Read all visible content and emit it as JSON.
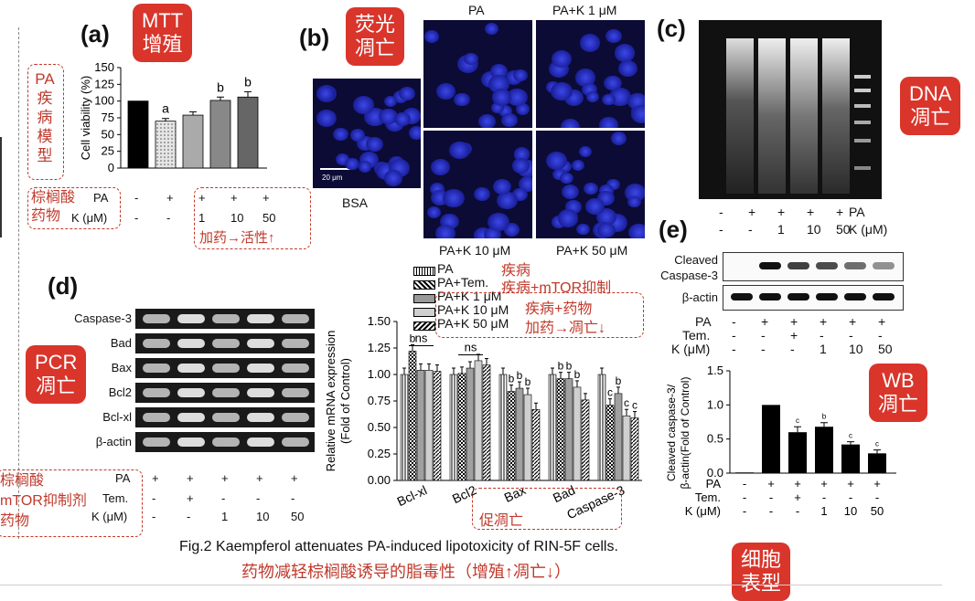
{
  "panel_a": {
    "letter": "(a)",
    "callout": "MTT\n增殖",
    "ylabel": "Cell viability (%)",
    "side_label": "PA\n疾\n病\n模\n型",
    "row_pa": "PA",
    "row_k": "K (μM)",
    "pa_vals": [
      "-",
      "+",
      "+",
      "+",
      "+"
    ],
    "k_vals": [
      "-",
      "-",
      "1",
      "10",
      "50"
    ],
    "left_label": "棕榈酸\n药物",
    "note": "加药→活性↑",
    "sig": [
      "",
      "a",
      "",
      "b",
      "b"
    ]
  },
  "panel_b": {
    "letter": "(b)",
    "callout": "荧光\n凋亡",
    "scale_bar": "20 μm",
    "labels": {
      "bsa": "BSA",
      "pa": "PA",
      "pak1": "PA+K 1 μM",
      "pak10": "PA+K 10 μM",
      "pak50": "PA+K 50 μM"
    }
  },
  "panel_c": {
    "letter": "(c)",
    "callout": "DNA\n凋亡",
    "pa_vals": [
      "-",
      "+",
      "+",
      "+",
      "+"
    ],
    "k_vals": [
      "-",
      "-",
      "1",
      "10",
      "50"
    ],
    "row_pa": "PA",
    "row_k": "K (μM)"
  },
  "panel_d": {
    "letter": "(d)",
    "callout": "PCR\n凋亡",
    "genes": [
      "Caspase-3",
      "Bad",
      "Bax",
      "Bcl2",
      "Bcl-xl",
      "β-actin"
    ],
    "row_pa": "PA",
    "row_tem": "Tem.",
    "row_k": "K (μM)",
    "pa_vals": [
      "+",
      "+",
      "+",
      "+",
      "+"
    ],
    "tem_vals": [
      "-",
      "+",
      "-",
      "-",
      "-"
    ],
    "k_vals": [
      "-",
      "-",
      "1",
      "10",
      "50"
    ],
    "left_label": "棕榈酸\nmTOR抑制剂\n药物",
    "legend": [
      "PA",
      "PA+Tem.",
      "PA+K 1 μM",
      "PA+K 10 μM",
      "PA+K 50 μM"
    ],
    "legend_notes": [
      "疾病",
      "疾病+mTOR抑制",
      "疾病+药物",
      "加药→凋亡↓"
    ],
    "x_note": "促凋亡",
    "ns": "ns"
  },
  "panel_e": {
    "letter": "(e)",
    "callout": "WB\n凋亡",
    "blot_labels": [
      "Cleaved\nCaspase-3",
      "β-actin"
    ],
    "row_pa": "PA",
    "row_tem": "Tem.",
    "row_k": "K (μM)",
    "pa_vals": [
      "-",
      "+",
      "+",
      "+",
      "+",
      "+"
    ],
    "tem_vals": [
      "-",
      "-",
      "+",
      "-",
      "-",
      "-"
    ],
    "k_vals": [
      "-",
      "-",
      "-",
      "1",
      "10",
      "50"
    ]
  },
  "caption": "Fig.2 Kaempferol attenuates PA-induced lipotoxicity of RIN-5F cells.",
  "caption_cn": "药物减轻棕榈酸诱导的脂毒性（增殖↑凋亡↓）",
  "callout_bottom": "细胞\n表型",
  "chart_data": [
    {
      "type": "bar",
      "categories": [
        "1",
        "2",
        "3",
        "4",
        "5"
      ],
      "values": [
        100,
        70,
        79,
        101,
        106
      ],
      "errors": [
        0,
        4,
        5,
        5,
        8
      ],
      "ylabel": "Cell viability (%)",
      "ylim": [
        0,
        150
      ],
      "yticks": [
        0,
        25,
        50,
        75,
        100,
        125,
        150
      ],
      "colors": [
        "#000000",
        "#d8d8d8",
        "#aaaaaa",
        "#888888",
        "#666666"
      ]
    },
    {
      "type": "bar",
      "categories": [
        "Bcl-xl",
        "Bcl2",
        "Bax",
        "Bad",
        "Caspase-3"
      ],
      "series": [
        {
          "name": "PA",
          "values": [
            1.0,
            1.0,
            1.0,
            1.0,
            1.0
          ]
        },
        {
          "name": "PA+Tem.",
          "values": [
            1.22,
            1.01,
            0.84,
            0.96,
            0.71
          ]
        },
        {
          "name": "PA+K 1 μM",
          "values": [
            1.04,
            1.06,
            0.87,
            0.96,
            0.82
          ]
        },
        {
          "name": "PA+K 10 μM",
          "values": [
            1.04,
            1.13,
            0.81,
            0.88,
            0.61
          ]
        },
        {
          "name": "PA+K 50 μM",
          "values": [
            1.03,
            1.09,
            0.67,
            0.76,
            0.59
          ]
        }
      ],
      "ylabel": "Relative mRNA expression\n(Fold of Control)",
      "ylim": [
        0,
        1.5
      ],
      "yticks": [
        "0.00",
        "0.25",
        "0.50",
        "0.75",
        "1.00",
        "1.25",
        "1.50"
      ],
      "sig": [
        [
          "",
          "b",
          "",
          "",
          ""
        ],
        [
          "",
          "",
          "",
          "",
          ""
        ],
        [
          "",
          "b",
          "b",
          "b",
          ""
        ],
        [
          "",
          "b",
          "b",
          "b",
          ""
        ],
        [
          "",
          "c",
          "b",
          "c",
          "c"
        ]
      ]
    },
    {
      "type": "bar",
      "categories": [
        "1",
        "2",
        "3",
        "4",
        "5",
        "6"
      ],
      "values": [
        0.01,
        1.0,
        0.6,
        0.68,
        0.42,
        0.29
      ],
      "errors": [
        0,
        0,
        0.08,
        0.06,
        0.04,
        0.05
      ],
      "ylabel": "Cleaved caspase-3/\nβ-actin(Fold of Control)",
      "ylim": [
        0,
        1.5
      ],
      "yticks": [
        "0.0",
        "0.5",
        "1.0",
        "1.5"
      ],
      "sig": [
        "",
        "",
        "c",
        "b",
        "c",
        "c"
      ]
    }
  ]
}
